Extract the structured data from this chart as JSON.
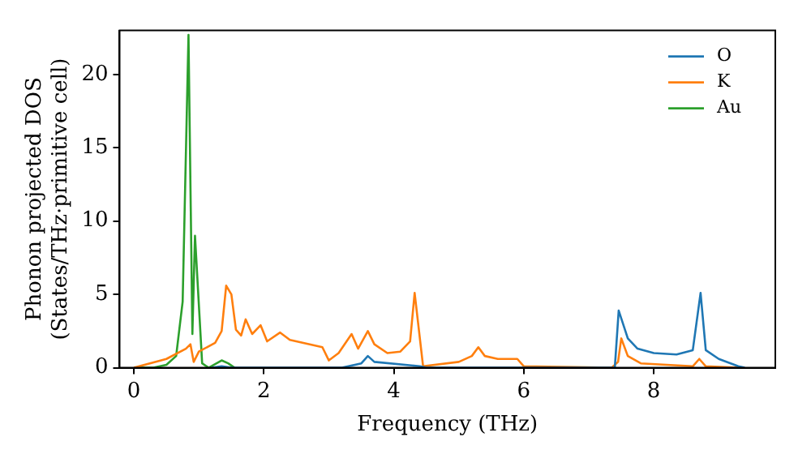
{
  "chart_data": {
    "type": "line",
    "xlabel": "Frequency (THz)",
    "ylabel": "Phonon projected DOS\n(States/THz·primitive cell)",
    "xlim": [
      -0.22,
      9.87
    ],
    "ylim": [
      0,
      23
    ],
    "xticks": [
      0,
      2,
      4,
      6,
      8
    ],
    "yticks": [
      0,
      5,
      10,
      15,
      20
    ],
    "grid": false,
    "legend": "top right",
    "marker": "none",
    "line_style": "solid",
    "series": [
      {
        "name": "O",
        "color": "#1f77b4",
        "x": [
          1.2,
          1.35,
          1.5,
          3.2,
          3.5,
          3.6,
          3.7,
          4.4,
          4.5,
          7.4,
          7.46,
          7.6,
          7.75,
          8.0,
          8.35,
          8.6,
          8.72,
          8.8,
          9.0,
          9.3,
          9.4
        ],
        "values": [
          0,
          0.1,
          0,
          0,
          0.3,
          0.8,
          0.4,
          0.1,
          0,
          0,
          3.9,
          2.0,
          1.3,
          1.0,
          0.9,
          1.2,
          5.1,
          1.2,
          0.6,
          0.1,
          0
        ]
      },
      {
        "name": "K",
        "color": "#ff7f0e",
        "x": [
          0,
          0.5,
          0.8,
          0.87,
          0.92,
          1.0,
          1.25,
          1.35,
          1.42,
          1.5,
          1.57,
          1.65,
          1.72,
          1.82,
          1.95,
          2.05,
          2.25,
          2.4,
          2.9,
          3.0,
          3.15,
          3.35,
          3.45,
          3.6,
          3.7,
          3.9,
          4.1,
          4.25,
          4.32,
          4.45,
          5.0,
          5.2,
          5.3,
          5.4,
          5.6,
          5.9,
          6.0,
          7.35,
          7.45,
          7.5,
          7.6,
          7.8,
          8.6,
          8.7,
          8.8,
          9.3
        ],
        "values": [
          0,
          0.6,
          1.3,
          1.6,
          0.4,
          1.1,
          1.7,
          2.5,
          5.6,
          5.0,
          2.6,
          2.2,
          3.3,
          2.3,
          2.9,
          1.8,
          2.4,
          1.9,
          1.4,
          0.5,
          1.0,
          2.3,
          1.3,
          2.5,
          1.6,
          1.0,
          1.1,
          1.8,
          5.1,
          0.1,
          0.4,
          0.8,
          1.4,
          0.8,
          0.6,
          0.6,
          0.1,
          0,
          0.4,
          2.0,
          0.8,
          0.3,
          0.1,
          0.6,
          0.1,
          0
        ]
      },
      {
        "name": "Au",
        "color": "#2ca02c",
        "x": [
          0,
          0.3,
          0.5,
          0.65,
          0.75,
          0.84,
          0.9,
          0.94,
          1.05,
          1.15,
          1.35,
          1.45,
          1.55
        ],
        "values": [
          0,
          0,
          0.2,
          0.8,
          4.5,
          22.7,
          2.3,
          9.0,
          0.3,
          0,
          0.5,
          0.3,
          0
        ]
      }
    ]
  }
}
